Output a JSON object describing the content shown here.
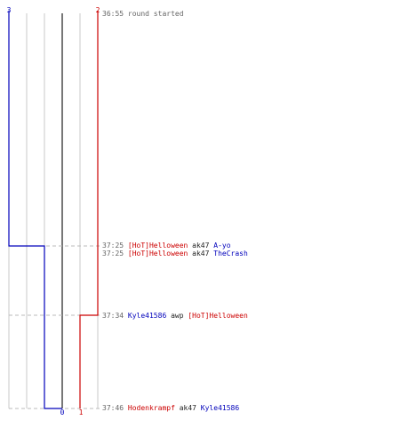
{
  "colors": {
    "blue_team": "#0000bb",
    "red_team": "#cc0000",
    "time": "#666666",
    "weapon": "#222222",
    "grid": "#c8c8c8",
    "center": "#777777",
    "dash": "#bbbbbb"
  },
  "teams": {
    "blue": {
      "name": "",
      "start_alive": "3",
      "end_alive": "0"
    },
    "red": {
      "name": "",
      "start_alive": "2",
      "end_alive": "1"
    }
  },
  "events": [
    {
      "time": "36:55",
      "text": "round started",
      "type": "start"
    },
    {
      "time": "37:25",
      "killer": "[HoT]Helloween",
      "killer_team": "red",
      "weapon": "ak47",
      "victim": "A-yo",
      "victim_team": "blue"
    },
    {
      "time": "37:25",
      "killer": "[HoT]Helloween",
      "killer_team": "red",
      "weapon": "ak47",
      "victim": "TheCrash",
      "victim_team": "blue"
    },
    {
      "time": "37:34",
      "killer": "Kyle41586",
      "killer_team": "blue",
      "weapon": "awp",
      "victim": "[HoT]Helloween",
      "victim_team": "red"
    },
    {
      "time": "37:46",
      "killer": "Hodenkrampf",
      "killer_team": "red",
      "weapon": "ak47",
      "victim": "Kyle41586",
      "victim_team": "blue"
    }
  ]
}
